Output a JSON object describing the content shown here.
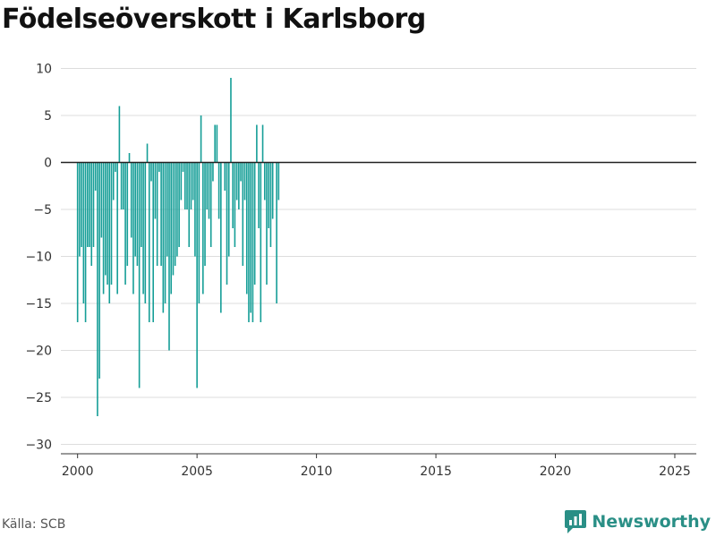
{
  "title": "Födelseöverskott i Karlsborg",
  "source": "Källa: SCB",
  "brand": {
    "name": "Newsworthy",
    "icon": "newsworthy-logo-icon"
  },
  "colors": {
    "bar": "#159e97",
    "zero_line": "#222222",
    "grid": "#dddddd",
    "axis": "#333333",
    "brand": "#2a8f86"
  },
  "chart_data": {
    "type": "bar",
    "title": "Födelseöverskott i Karlsborg",
    "xlabel": "",
    "ylabel": "",
    "ylim": [
      -31,
      11
    ],
    "xlim": [
      1999.3,
      2025.9
    ],
    "yticks": [
      10,
      5,
      0,
      -5,
      -10,
      -15,
      -20,
      -25,
      -30
    ],
    "ytick_labels": [
      "10",
      "5",
      "0",
      "−5",
      "−10",
      "−15",
      "−20",
      "−25",
      "−30"
    ],
    "xticks": [
      2000,
      2005,
      2010,
      2015,
      2020,
      2025
    ],
    "xtick_labels": [
      "2000",
      "2005",
      "2010",
      "2015",
      "2020",
      "2025"
    ],
    "grid": true,
    "frequency": "monthly",
    "start": "2000-01",
    "values": [
      -17,
      -10,
      -9,
      -15,
      -17,
      -9,
      -9,
      -11,
      -9,
      -3,
      -27,
      -23,
      -8,
      -14,
      -12,
      -13,
      -15,
      -13,
      -4,
      -1,
      -14,
      6,
      -5,
      -5,
      -13,
      -11,
      1,
      -8,
      -14,
      -10,
      -11,
      -24,
      -9,
      -14,
      -15,
      2,
      -17,
      -2,
      -17,
      -6,
      -11,
      -1,
      -11,
      -16,
      -15,
      -10,
      -20,
      -14,
      -12,
      -11,
      -10,
      -9,
      -4,
      -1,
      -5,
      -5,
      -9,
      -5,
      -4,
      -10,
      -24,
      -15,
      5,
      -14,
      -11,
      -5,
      -6,
      -9,
      -2,
      4,
      4,
      -6,
      -16,
      0,
      -3,
      -13,
      -10,
      9,
      -7,
      -9,
      -4,
      -5,
      -2,
      -11,
      -4,
      -14,
      -17,
      -16,
      -17,
      -13,
      4,
      -7,
      -17,
      4,
      -4,
      -13,
      -7,
      -9,
      -6,
      0,
      -15,
      -4
    ]
  }
}
